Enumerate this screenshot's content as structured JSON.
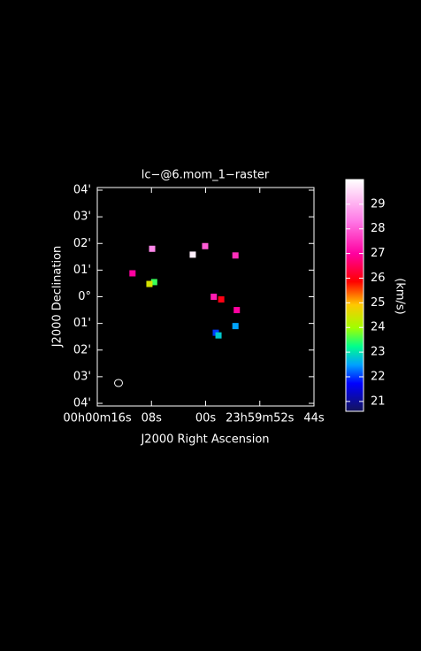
{
  "chart_data": {
    "type": "raster",
    "title": "lc−@6.mom_1−raster",
    "x_label": "J2000 Right Ascension",
    "y_label": "J2000 Declination",
    "colorbar_label": "(km/s)",
    "xlim": [
      16,
      -16
    ],
    "ylim": [
      -4,
      4
    ],
    "xticks": [
      {
        "value": 16,
        "label": "00h00m16s"
      },
      {
        "value": 8,
        "label": "08s"
      },
      {
        "value": 0,
        "label": "00s"
      },
      {
        "value": -8,
        "label": "23h59m52s"
      },
      {
        "value": -16,
        "label": "44s"
      }
    ],
    "yticks": [
      {
        "value": 4,
        "label": "04'"
      },
      {
        "value": 3,
        "label": "03'"
      },
      {
        "value": 2,
        "label": "02'"
      },
      {
        "value": 1,
        "label": "01'"
      },
      {
        "value": 0,
        "label": "0°"
      },
      {
        "value": -1,
        "label": "01'"
      },
      {
        "value": -2,
        "label": "02'"
      },
      {
        "value": -3,
        "label": "03'"
      },
      {
        "value": -4,
        "label": "04'"
      }
    ],
    "clim": [
      20.6,
      30
    ],
    "cticks": [
      21,
      22,
      23,
      24,
      25,
      26,
      27,
      28,
      29
    ],
    "x": [
      1.9,
      0.07,
      7.9,
      -4.4,
      10.8,
      7.6,
      8.3,
      -1.2,
      -2.3,
      -4.6,
      -4.4,
      -1.5,
      -1.9
    ],
    "y": [
      1.58,
      1.9,
      1.8,
      1.55,
      0.88,
      0.55,
      0.48,
      0,
      -0.1,
      -0.5,
      -1.1,
      -1.35,
      -1.45
    ],
    "values": [
      29.8,
      28,
      28.5,
      27.5,
      27,
      23.5,
      24.5,
      27.3,
      26,
      27,
      22.5,
      22,
      22.8
    ]
  }
}
